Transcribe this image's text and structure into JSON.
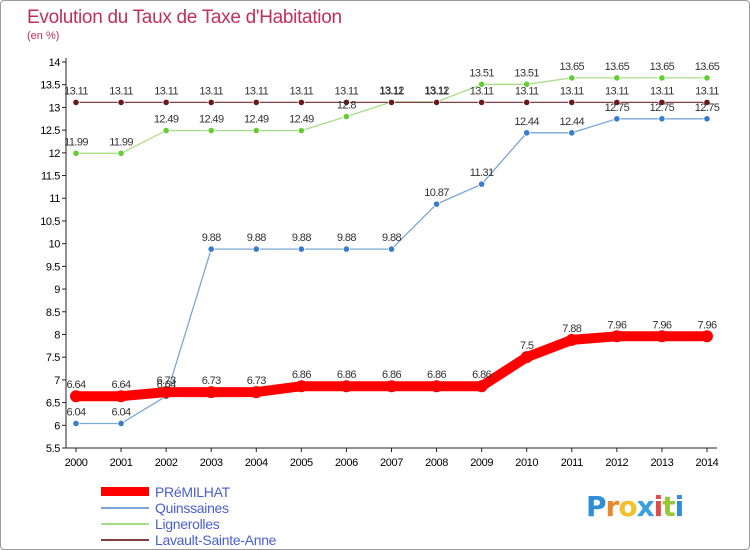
{
  "title": "Evolution du Taux de Taxe d'Habitation",
  "subtitle": "(en %)",
  "logo": {
    "text": "Proxiti",
    "letters": [
      {
        "ch": "P",
        "color": "#2e8fd6"
      },
      {
        "ch": "r",
        "color": "#e8892b"
      },
      {
        "ch": "o",
        "color": "#f2c12e"
      },
      {
        "ch": "x",
        "color": "#3aa0e0"
      },
      {
        "ch": "i",
        "color": "#e24b4b"
      },
      {
        "ch": "t",
        "color": "#9bc63b"
      },
      {
        "ch": "i",
        "color": "#2e8fd6"
      }
    ]
  },
  "chart_data": {
    "type": "line",
    "x": [
      "2000",
      "2001",
      "2002",
      "2003",
      "2004",
      "2005",
      "2006",
      "2007",
      "2008",
      "2009",
      "2010",
      "2011",
      "2012",
      "2013",
      "2014"
    ],
    "ylim": [
      5.5,
      14
    ],
    "yticks": [
      "5.5",
      "6",
      "6.5",
      "7",
      "7.5",
      "8",
      "8.5",
      "9",
      "9.5",
      "10",
      "10.5",
      "11",
      "11.5",
      "12",
      "12.5",
      "13",
      "13.5",
      "14"
    ],
    "grid": false,
    "legend_position": "bottom-left",
    "series": [
      {
        "name": "PRéMILHAT",
        "color": "#ff0000",
        "emphasis": true,
        "values": [
          6.64,
          6.64,
          6.73,
          6.73,
          6.73,
          6.86,
          6.86,
          6.86,
          6.86,
          6.86,
          7.5,
          7.88,
          7.96,
          7.96,
          7.96
        ],
        "labels": [
          "6.64",
          "6.64",
          "6.73",
          "6.73",
          "6.73",
          "6.86",
          "6.86",
          "6.86",
          "6.86",
          "6.86",
          "7.5",
          "7.88",
          "7.96",
          "7.96",
          "7.96"
        ]
      },
      {
        "name": "Quinssaines",
        "color": "#7aa7d6",
        "marker": "#3a7ccc",
        "values": [
          6.04,
          6.04,
          6.64,
          9.88,
          9.88,
          9.88,
          9.88,
          9.88,
          10.87,
          11.31,
          12.44,
          12.44,
          12.75,
          12.75,
          12.75
        ],
        "labels": [
          "6.04",
          "6.04",
          "6.64",
          "9.88",
          "9.88",
          "9.88",
          "9.88",
          "9.88",
          "10.87",
          "11.31",
          "12.44",
          "12.44",
          "12.75",
          "12.75",
          "12.75"
        ]
      },
      {
        "name": "Lignerolles",
        "color": "#a8dd88",
        "marker": "#66cc33",
        "values": [
          11.99,
          11.99,
          12.49,
          12.49,
          12.49,
          12.49,
          12.8,
          13.12,
          13.12,
          13.51,
          13.51,
          13.65,
          13.65,
          13.65,
          13.65
        ],
        "labels": [
          "11.99",
          "11.99",
          "12.49",
          "12.49",
          "12.49",
          "12.49",
          "12.8",
          "13.12",
          "13.12",
          "13.51",
          "13.51",
          "13.65",
          "13.65",
          "13.65",
          "13.65"
        ]
      },
      {
        "name": "Lavault-Sainte-Anne",
        "color": "#804040",
        "marker": "#661a1a",
        "values": [
          13.11,
          13.11,
          13.11,
          13.11,
          13.11,
          13.11,
          13.11,
          13.11,
          13.11,
          13.11,
          13.11,
          13.11,
          13.11,
          13.11,
          13.11
        ],
        "labels": [
          "13.11",
          "13.11",
          "13.11",
          "13.11",
          "13.11",
          "13.11",
          "13.11",
          "13.11",
          "13.11",
          "13.11",
          "13.11",
          "13.11",
          "13.11",
          "13.11",
          "13.11"
        ]
      }
    ]
  }
}
